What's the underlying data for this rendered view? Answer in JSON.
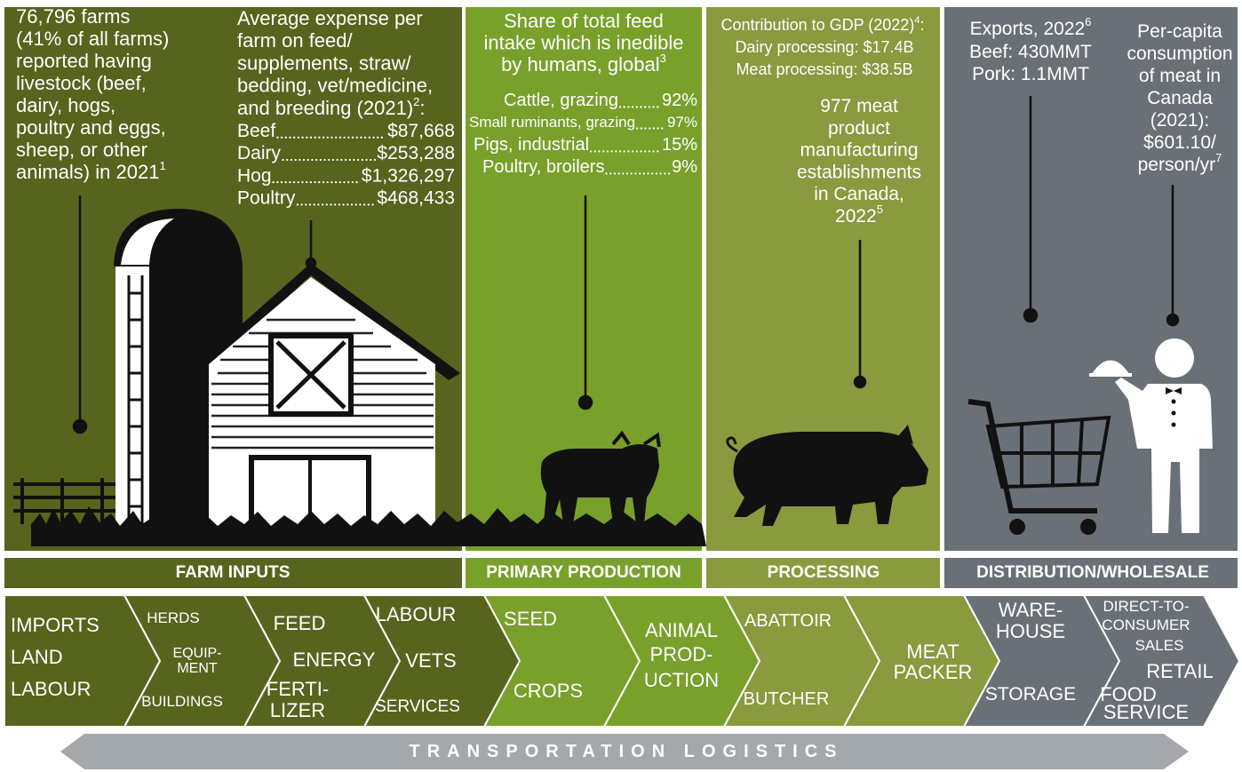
{
  "panels": [
    {
      "stage": "FARM INPUTS",
      "blocks": [
        {
          "lines": [
            "76,796 farms",
            "(41% of all farms)",
            "reported having",
            "livestock (beef,",
            "dairy, hogs,",
            "poultry and eggs,",
            "sheep, or other",
            "animals) in 2021"
          ],
          "note": "1"
        },
        {
          "lines": [
            "Average expense per",
            "farm on feed/",
            "supplements, straw/",
            "bedding, vet/medicine,",
            "and breeding (2021)"
          ],
          "note": "2",
          "suffix": ":",
          "items": [
            {
              "label": "Beef",
              "value": "$87,668"
            },
            {
              "label": "Dairy",
              "value": "$253,288"
            },
            {
              "label": "Hog",
              "value": "$1,326,297"
            },
            {
              "label": "Poultry",
              "value": "$468,433"
            }
          ]
        }
      ]
    },
    {
      "stage": "PRIMARY PRODUCTION",
      "blocks": [
        {
          "lines": [
            "Share of total feed",
            "intake which is inedible",
            "by humans, global"
          ],
          "note": "3",
          "items": [
            {
              "label": "Cattle, grazing",
              "value": "92%"
            },
            {
              "label": "Small ruminants, grazing",
              "value": "97%"
            },
            {
              "label": "Pigs, industrial",
              "value": "15%"
            },
            {
              "label": "Poultry, broilers",
              "value": "9%"
            }
          ]
        }
      ]
    },
    {
      "stage": "PROCESSING",
      "blocks": [
        {
          "lines": [
            "Contribution to GDP (2022)"
          ],
          "note": "4",
          "suffix": ":",
          "details": [
            "Dairy processing: $17.4B",
            "Meat processing: $38.5B"
          ]
        },
        {
          "lines": [
            "977 meat",
            "product",
            "manufacturing",
            "establishments",
            "in Canada,",
            "2022"
          ],
          "note": "5"
        }
      ]
    },
    {
      "stage": "DISTRIBUTION/WHOLESALE",
      "blocks": [
        {
          "lines": [
            "Exports, 2022"
          ],
          "note": "6",
          "details": [
            "Beef: 430MMT",
            "Pork: 1.1MMT"
          ]
        },
        {
          "lines": [
            "Per-capita",
            "consumption",
            "of meat in",
            "Canada",
            "(2021):",
            "$601.10/",
            "person/yr"
          ],
          "note": "7"
        }
      ]
    }
  ],
  "chevrons": [
    {
      "lines": [
        "IMPORTS",
        "LAND",
        "LABOUR"
      ]
    },
    {
      "lines": [
        "HERDS",
        "EQUIP-",
        "MENT",
        "BUILDINGS"
      ]
    },
    {
      "lines": [
        "FEED",
        "ENERGY",
        "FERTI-",
        "LIZER"
      ]
    },
    {
      "lines": [
        "LABOUR",
        "VETS",
        "SERVICES"
      ]
    },
    {
      "lines": [
        "SEED",
        "CROPS"
      ]
    },
    {
      "lines": [
        "ANIMAL",
        "PROD-",
        "UCTION"
      ]
    },
    {
      "lines": [
        "ABATTOIR",
        "BUTCHER"
      ]
    },
    {
      "lines": [
        "MEAT",
        "PACKER"
      ]
    },
    {
      "lines": [
        "WARE-",
        "HOUSE",
        "STORAGE"
      ]
    },
    {
      "lines": [
        "DIRECT-TO-",
        "CONSUMER",
        "SALES",
        "RETAIL",
        "FOOD",
        "SERVICE"
      ]
    }
  ],
  "banner": "TRANSPORTATION LOGISTICS"
}
